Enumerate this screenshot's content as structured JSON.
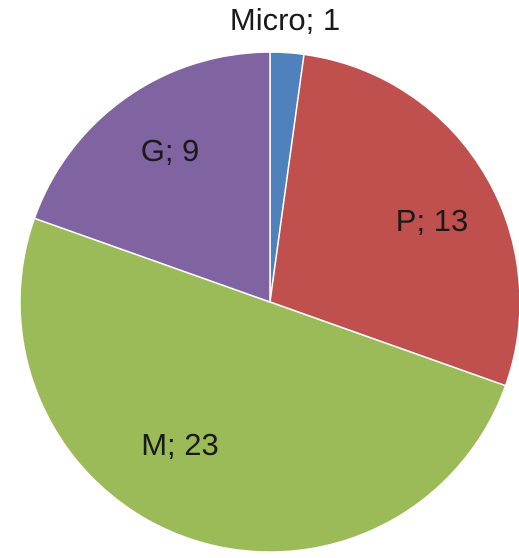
{
  "chart_data": {
    "type": "pie",
    "categories": [
      "Micro",
      "P",
      "M",
      "G"
    ],
    "values": [
      1,
      13,
      23,
      9
    ],
    "labels": [
      "Micro; 1",
      "P; 13",
      "M; 23",
      "G; 9"
    ],
    "colors": [
      "#4f81bd",
      "#c0504d",
      "#9bbb59",
      "#8064a2"
    ],
    "start_angle_deg": 0,
    "direction": "clockwise",
    "legend": "none",
    "title": ""
  }
}
